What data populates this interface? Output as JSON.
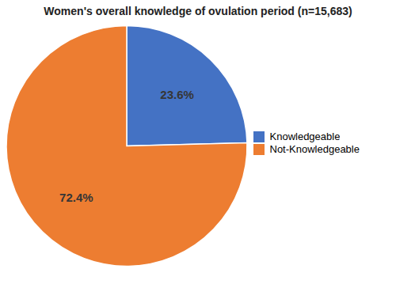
{
  "chart_data": {
    "type": "pie",
    "title": "Women's overall knowledge of ovulation period (n=15,683)",
    "categories": [
      "Knowledgeable",
      "Not-Knowledgeable"
    ],
    "values": [
      23.6,
      72.4
    ],
    "value_labels": [
      "23.6%",
      "72.4%"
    ],
    "colors": [
      "#4472C4",
      "#ED7D31"
    ],
    "data_labels": true,
    "legend": "right"
  }
}
